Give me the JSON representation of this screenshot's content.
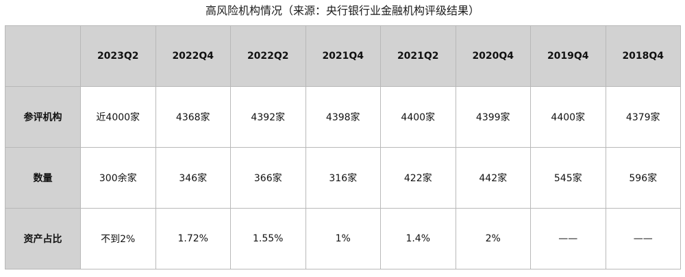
{
  "title": "高风险机构情况（来源：央行银行业金融机构评级结果）",
  "table": {
    "corner": "",
    "columns": [
      "2023Q2",
      "2022Q4",
      "2022Q2",
      "2021Q4",
      "2021Q2",
      "2020Q4",
      "2019Q4",
      "2018Q4"
    ],
    "rows": [
      {
        "label": "参评机构",
        "cells": [
          "近4000家",
          "4368家",
          "4392家",
          "4398家",
          "4400家",
          "4399家",
          "4400家",
          "4379家"
        ]
      },
      {
        "label": "数量",
        "cells": [
          "300余家",
          "346家",
          "366家",
          "316家",
          "422家",
          "442家",
          "545家",
          "596家"
        ]
      },
      {
        "label": "资产占比",
        "cells": [
          "不到2%",
          "1.72%",
          "1.55%",
          "1%",
          "1.4%",
          "2%",
          "——",
          "——"
        ]
      }
    ]
  },
  "colors": {
    "header_bg": "#d2d2d2",
    "border": "#b8b8b8",
    "cell_bg": "#ffffff"
  }
}
